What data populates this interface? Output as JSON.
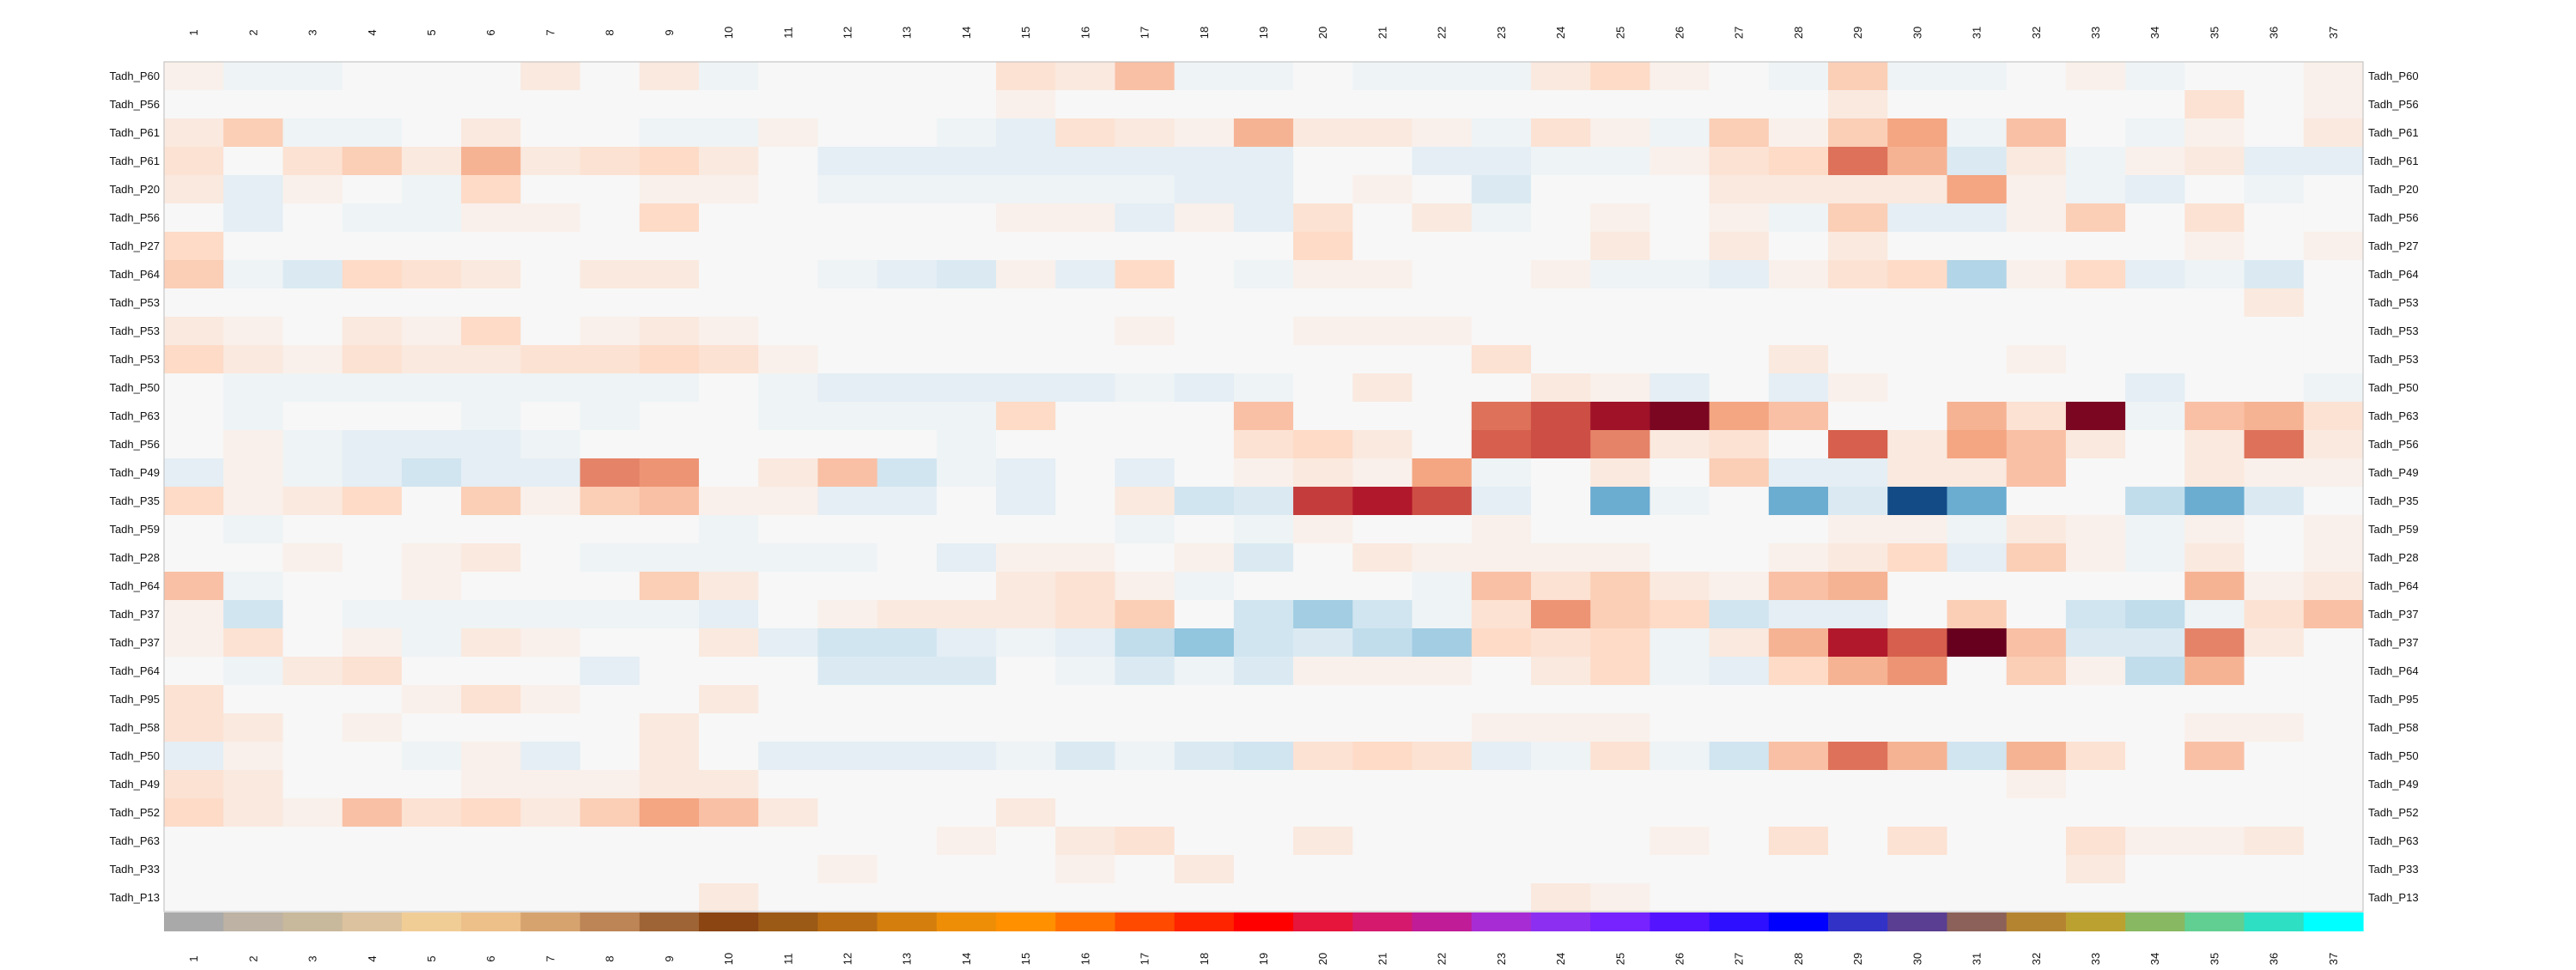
{
  "chart_data": {
    "type": "heatmap",
    "columns": [
      "1",
      "2",
      "3",
      "4",
      "5",
      "6",
      "7",
      "8",
      "9",
      "10",
      "11",
      "12",
      "13",
      "14",
      "15",
      "16",
      "17",
      "18",
      "19",
      "20",
      "21",
      "22",
      "23",
      "24",
      "25",
      "26",
      "27",
      "28",
      "29",
      "30",
      "31",
      "32",
      "33",
      "34",
      "35",
      "36",
      "37"
    ],
    "rows": [
      "Tadh_P60",
      "Tadh_P56",
      "Tadh_P61",
      "Tadh_P61",
      "Tadh_P20",
      "Tadh_P56",
      "Tadh_P27",
      "Tadh_P64",
      "Tadh_P53",
      "Tadh_P53",
      "Tadh_P53",
      "Tadh_P50",
      "Tadh_P63",
      "Tadh_P56",
      "Tadh_P49",
      "Tadh_P35",
      "Tadh_P59",
      "Tadh_P28",
      "Tadh_P64",
      "Tadh_P37",
      "Tadh_P37",
      "Tadh_P64",
      "Tadh_P95",
      "Tadh_P58",
      "Tadh_P50",
      "Tadh_P49",
      "Tadh_P52",
      "Tadh_P63",
      "Tadh_P33",
      "Tadh_P13"
    ],
    "colorscale": {
      "low": "#2166ac",
      "mid": "#f7f7f7",
      "high": "#67001f",
      "vmin": -1,
      "vmax": 1
    },
    "values": [
      [
        0.05,
        -0.05,
        -0.05,
        0,
        0,
        0,
        0.1,
        0,
        0.1,
        -0.05,
        0,
        0,
        0,
        0,
        0.15,
        0.1,
        0.3,
        -0.05,
        -0.05,
        0,
        -0.05,
        -0.05,
        -0.05,
        0.1,
        0.2,
        0.05,
        0,
        -0.05,
        0.25,
        -0.05,
        -0.05,
        0,
        0.05,
        -0.05,
        0,
        0,
        0.05
      ],
      [
        0,
        0,
        0,
        0,
        0,
        0,
        0,
        0,
        0,
        0,
        0,
        0,
        0,
        0,
        0.05,
        0,
        0,
        0,
        0,
        0,
        0,
        0,
        0,
        0,
        0,
        0,
        0,
        0,
        0.1,
        0,
        0,
        0,
        0,
        0,
        0.15,
        0,
        0.05
      ],
      [
        0.1,
        0.25,
        -0.05,
        -0.05,
        0,
        0.1,
        0,
        0,
        -0.05,
        -0.05,
        0.05,
        0,
        0,
        -0.05,
        -0.1,
        0.15,
        0.1,
        0.05,
        0.35,
        0.1,
        0.1,
        0.05,
        -0.05,
        0.15,
        0.05,
        -0.05,
        0.25,
        0.05,
        0.25,
        0.4,
        -0.05,
        0.3,
        0,
        -0.05,
        0.05,
        0,
        0.1
      ],
      [
        0.15,
        0,
        0.15,
        0.25,
        0.1,
        0.35,
        0.1,
        0.15,
        0.2,
        0.1,
        0,
        -0.1,
        -0.1,
        -0.1,
        -0.1,
        -0.1,
        -0.1,
        -0.1,
        -0.1,
        0,
        0,
        -0.1,
        -0.1,
        -0.05,
        -0.05,
        0.05,
        0.15,
        0.2,
        0.55,
        0.35,
        -0.15,
        0.1,
        -0.05,
        0.05,
        0.1,
        -0.1,
        -0.1
      ],
      [
        0.1,
        -0.1,
        0.05,
        0,
        -0.05,
        0.2,
        0,
        0,
        0.05,
        0.05,
        0,
        -0.05,
        -0.05,
        -0.05,
        -0.05,
        -0.05,
        -0.05,
        -0.1,
        -0.1,
        0,
        0.05,
        0,
        -0.15,
        0,
        0,
        0,
        0.1,
        0.1,
        0.1,
        0.1,
        0.4,
        0.05,
        -0.05,
        -0.1,
        0,
        -0.05,
        0
      ],
      [
        0,
        -0.1,
        0,
        -0.05,
        -0.05,
        0.05,
        0.05,
        0,
        0.2,
        0,
        0,
        0,
        0,
        0,
        0.05,
        0.05,
        -0.1,
        0.05,
        -0.1,
        0.15,
        0,
        0.1,
        -0.05,
        0,
        0.05,
        0,
        0.05,
        -0.05,
        0.25,
        -0.1,
        -0.1,
        0.05,
        0.25,
        0,
        0.15,
        0,
        0
      ],
      [
        0.2,
        0,
        0,
        0,
        0,
        0,
        0,
        0,
        0,
        0,
        0,
        0,
        0,
        0,
        0,
        0,
        0,
        0,
        0,
        0.2,
        0,
        0,
        0,
        0,
        0.1,
        0,
        0.1,
        0,
        0.1,
        0,
        0,
        0,
        0,
        0,
        0.05,
        0,
        0.05
      ],
      [
        0.25,
        -0.05,
        -0.15,
        0.2,
        0.15,
        0.1,
        0,
        0.1,
        0.1,
        0,
        0,
        -0.05,
        -0.1,
        -0.15,
        0.05,
        -0.1,
        0.2,
        0,
        -0.05,
        0.05,
        0.05,
        0,
        0,
        0.05,
        -0.05,
        -0.05,
        -0.1,
        0.05,
        0.15,
        0.2,
        -0.3,
        0.05,
        0.2,
        -0.1,
        -0.05,
        -0.15,
        0
      ],
      [
        0,
        0,
        0,
        0,
        0,
        0,
        0,
        0,
        0,
        0,
        0,
        0,
        0,
        0,
        0,
        0,
        0,
        0,
        0,
        0,
        0,
        0,
        0,
        0,
        0,
        0,
        0,
        0,
        0,
        0,
        0,
        0,
        0,
        0,
        0,
        0.1,
        0
      ],
      [
        0.1,
        0.05,
        0,
        0.1,
        0.05,
        0.2,
        0,
        0.05,
        0.1,
        0.05,
        0,
        0,
        0,
        0,
        0,
        0,
        0.05,
        0,
        0,
        0.05,
        0.05,
        0.05,
        0,
        0,
        0,
        0,
        0,
        0,
        0,
        0,
        0,
        0,
        0,
        0,
        0,
        0,
        0
      ],
      [
        0.2,
        0.1,
        0.05,
        0.15,
        0.1,
        0.1,
        0.15,
        0.15,
        0.2,
        0.15,
        0.05,
        0,
        0,
        0,
        0,
        0,
        0,
        0,
        0,
        0,
        0,
        0,
        0.15,
        0,
        0,
        0,
        0,
        0.1,
        0,
        0,
        0,
        0.05,
        0,
        0,
        0,
        0,
        0
      ],
      [
        0,
        -0.05,
        -0.05,
        -0.05,
        -0.05,
        -0.05,
        -0.05,
        -0.05,
        -0.05,
        0,
        -0.05,
        -0.1,
        -0.1,
        -0.1,
        -0.1,
        -0.1,
        -0.05,
        -0.1,
        -0.05,
        0,
        0.1,
        0,
        0,
        0.1,
        0.05,
        -0.1,
        0,
        -0.1,
        0.05,
        0,
        0,
        0,
        0,
        -0.1,
        0,
        0,
        -0.05
      ],
      [
        0,
        -0.05,
        0,
        0,
        0,
        -0.05,
        0,
        -0.05,
        0,
        0,
        -0.05,
        -0.05,
        -0.05,
        -0.05,
        0.2,
        0,
        0,
        0,
        0.3,
        0,
        0,
        0,
        0.55,
        0.65,
        0.85,
        0.95,
        0.4,
        0.3,
        0,
        0,
        0.35,
        0.15,
        0.95,
        -0.05,
        0.3,
        0.35,
        0.15
      ],
      [
        0,
        0.05,
        -0.05,
        -0.1,
        -0.1,
        -0.1,
        -0.05,
        0,
        0,
        0,
        0,
        0,
        0,
        -0.05,
        0,
        0,
        0,
        0,
        0.15,
        0.2,
        0.1,
        0,
        0.6,
        0.65,
        0.5,
        0.1,
        0.15,
        0,
        0.6,
        0.1,
        0.4,
        0.3,
        0.1,
        0,
        0.1,
        0.55,
        0.1
      ],
      [
        -0.1,
        0.05,
        -0.05,
        -0.1,
        -0.2,
        -0.1,
        -0.1,
        0.5,
        0.45,
        0,
        0.1,
        0.3,
        -0.2,
        -0.05,
        -0.1,
        0,
        -0.1,
        0,
        0.05,
        0.1,
        0.05,
        0.4,
        -0.05,
        0,
        0.1,
        0,
        0.25,
        -0.1,
        -0.1,
        0.1,
        0.1,
        0.3,
        0,
        0,
        0.1,
        0.05,
        0.05
      ],
      [
        0.2,
        0.05,
        0.1,
        0.2,
        0,
        0.25,
        0.05,
        0.25,
        0.3,
        0.05,
        0.05,
        -0.1,
        -0.1,
        0,
        -0.1,
        0,
        0.1,
        -0.2,
        -0.15,
        0.7,
        0.8,
        0.65,
        -0.1,
        0,
        -0.5,
        -0.05,
        0,
        -0.5,
        -0.15,
        -0.9,
        -0.5,
        0,
        0,
        -0.25,
        -0.5,
        -0.15,
        0
      ],
      [
        0,
        -0.05,
        0,
        0,
        0,
        0,
        0,
        0,
        0,
        -0.05,
        0,
        0,
        0,
        0,
        0,
        0,
        -0.05,
        0,
        -0.05,
        0.05,
        0,
        0,
        0.05,
        0,
        0,
        0,
        0,
        0,
        0.05,
        0.05,
        -0.05,
        0.1,
        0.05,
        -0.05,
        0.05,
        0,
        0.05
      ],
      [
        0,
        0,
        0.05,
        0,
        0.05,
        0.1,
        0,
        -0.05,
        -0.05,
        -0.05,
        -0.05,
        -0.05,
        0,
        -0.1,
        0.05,
        0.05,
        0,
        0.05,
        -0.15,
        0,
        0.1,
        0.05,
        0.05,
        0.05,
        0.05,
        0,
        0,
        0.05,
        0.1,
        0.2,
        -0.1,
        0.25,
        0.05,
        -0.05,
        0.1,
        0,
        0.05
      ],
      [
        0.3,
        -0.05,
        0,
        0,
        0.05,
        0,
        0,
        0,
        0.25,
        0.1,
        0,
        0,
        0,
        0,
        0.1,
        0.15,
        0.05,
        -0.05,
        0,
        0,
        0,
        -0.05,
        0.3,
        0.15,
        0.25,
        0.1,
        0.05,
        0.3,
        0.35,
        0,
        0,
        0,
        0,
        0,
        0.35,
        0.05,
        0.1
      ],
      [
        0.05,
        -0.2,
        0,
        -0.05,
        -0.05,
        -0.05,
        -0.05,
        -0.05,
        -0.05,
        -0.1,
        0,
        0.05,
        0.1,
        0.1,
        0.1,
        0.15,
        0.25,
        0,
        -0.2,
        -0.35,
        -0.2,
        -0.05,
        0.15,
        0.45,
        0.25,
        0.2,
        -0.2,
        -0.1,
        -0.1,
        0,
        0.25,
        0,
        -0.2,
        -0.25,
        -0.05,
        0.15,
        0.3
      ],
      [
        0.05,
        0.15,
        0,
        0.05,
        -0.05,
        0.1,
        0.05,
        0,
        0,
        0.1,
        -0.1,
        -0.2,
        -0.2,
        -0.1,
        -0.05,
        -0.1,
        -0.25,
        -0.4,
        -0.2,
        -0.15,
        -0.25,
        -0.35,
        0.2,
        0.15,
        0.2,
        -0.05,
        0.1,
        0.35,
        0.8,
        0.6,
        1,
        0.3,
        -0.15,
        -0.15,
        0.5,
        0.1,
        0
      ],
      [
        0,
        -0.05,
        0.1,
        0.15,
        0,
        0,
        0,
        -0.1,
        0,
        0,
        0,
        -0.15,
        -0.15,
        -0.15,
        0,
        -0.05,
        -0.15,
        -0.05,
        -0.15,
        0.05,
        0.05,
        0.05,
        0,
        0.1,
        0.2,
        -0.05,
        -0.1,
        0.2,
        0.35,
        0.45,
        0,
        0.25,
        0.05,
        -0.25,
        0.35,
        0,
        0
      ],
      [
        0.15,
        0,
        0,
        0,
        0.05,
        0.15,
        0.05,
        0,
        0,
        0.1,
        0,
        0,
        0,
        0,
        0,
        0,
        0,
        0,
        0,
        0,
        0,
        0,
        0,
        0,
        0,
        0,
        0,
        0,
        0,
        0,
        0,
        0,
        0,
        0,
        0,
        0,
        0
      ],
      [
        0.15,
        0.1,
        0,
        0.05,
        0,
        0,
        0,
        0,
        0.1,
        0,
        0,
        0,
        0,
        0,
        0,
        0,
        0,
        0,
        0,
        0,
        0,
        0,
        0.05,
        0.05,
        0.05,
        0,
        0,
        0,
        0,
        0,
        0,
        0,
        0,
        0,
        0.05,
        0.05,
        0
      ],
      [
        -0.1,
        0.05,
        0,
        0,
        -0.05,
        0.05,
        -0.1,
        0,
        0.1,
        0,
        -0.1,
        -0.1,
        -0.1,
        -0.1,
        -0.05,
        -0.15,
        -0.05,
        -0.15,
        -0.2,
        0.15,
        0.2,
        0.15,
        -0.1,
        -0.05,
        0.15,
        -0.05,
        -0.2,
        0.3,
        0.55,
        0.35,
        -0.2,
        0.35,
        0.15,
        0,
        0.3,
        0,
        0
      ],
      [
        0.15,
        0.1,
        0,
        0,
        0,
        0.05,
        0.05,
        0.05,
        0.1,
        0.1,
        0,
        0,
        0,
        0,
        0,
        0,
        0,
        0,
        0,
        0,
        0,
        0,
        0,
        0,
        0,
        0,
        0,
        0,
        0,
        0,
        0,
        0.05,
        0,
        0,
        0,
        0,
        0
      ],
      [
        0.2,
        0.1,
        0.05,
        0.3,
        0.15,
        0.2,
        0.1,
        0.25,
        0.4,
        0.3,
        0.1,
        0,
        0,
        0,
        0.1,
        0,
        0,
        0,
        0,
        0,
        0,
        0,
        0,
        0,
        0,
        0,
        0,
        0,
        0,
        0,
        0,
        0,
        0,
        0,
        0,
        0,
        0
      ],
      [
        0,
        0,
        0,
        0,
        0,
        0,
        0,
        0,
        0,
        0,
        0,
        0,
        0,
        0.05,
        0,
        0.1,
        0.15,
        0,
        0,
        0.1,
        0,
        0,
        0,
        0,
        0,
        0.05,
        0,
        0.15,
        0,
        0.15,
        0,
        0,
        0.15,
        0.05,
        0.05,
        0.1,
        0
      ],
      [
        0,
        0,
        0,
        0,
        0,
        0,
        0,
        0,
        0,
        0,
        0,
        0.05,
        0,
        0,
        0,
        0.05,
        0,
        0.1,
        0,
        0,
        0,
        0,
        0,
        0,
        0,
        0,
        0,
        0,
        0,
        0,
        0,
        0,
        0.1,
        0,
        0,
        0,
        0
      ],
      [
        0,
        0,
        0,
        0,
        0,
        0,
        0,
        0,
        0,
        0.1,
        0,
        0,
        0,
        0,
        0,
        0,
        0,
        0,
        0,
        0,
        0,
        0,
        0,
        0.1,
        0.05,
        0,
        0,
        0,
        0,
        0,
        0,
        0,
        0,
        0,
        0,
        0,
        0
      ]
    ],
    "column_colors": [
      "#a9a9a9",
      "#bdb2a3",
      "#c8b89c",
      "#dcc29e",
      "#f1cd96",
      "#edc08a",
      "#d6a36f",
      "#bd8456",
      "#9f6435",
      "#8b4513",
      "#9c5a17",
      "#b86b12",
      "#d47f0d",
      "#ee8e07",
      "#ff9000",
      "#ff7000",
      "#ff4a00",
      "#ff2400",
      "#ff0000",
      "#e6153c",
      "#d51a6d",
      "#c11c98",
      "#a82cd3",
      "#8d2ff1",
      "#7623ff",
      "#5514ff",
      "#2f0fff",
      "#0000ff",
      "#3332c7",
      "#5a3e92",
      "#8b6159",
      "#b58431",
      "#bba12f",
      "#88b861",
      "#61cf92",
      "#2edfc4",
      "#00ffff"
    ]
  }
}
